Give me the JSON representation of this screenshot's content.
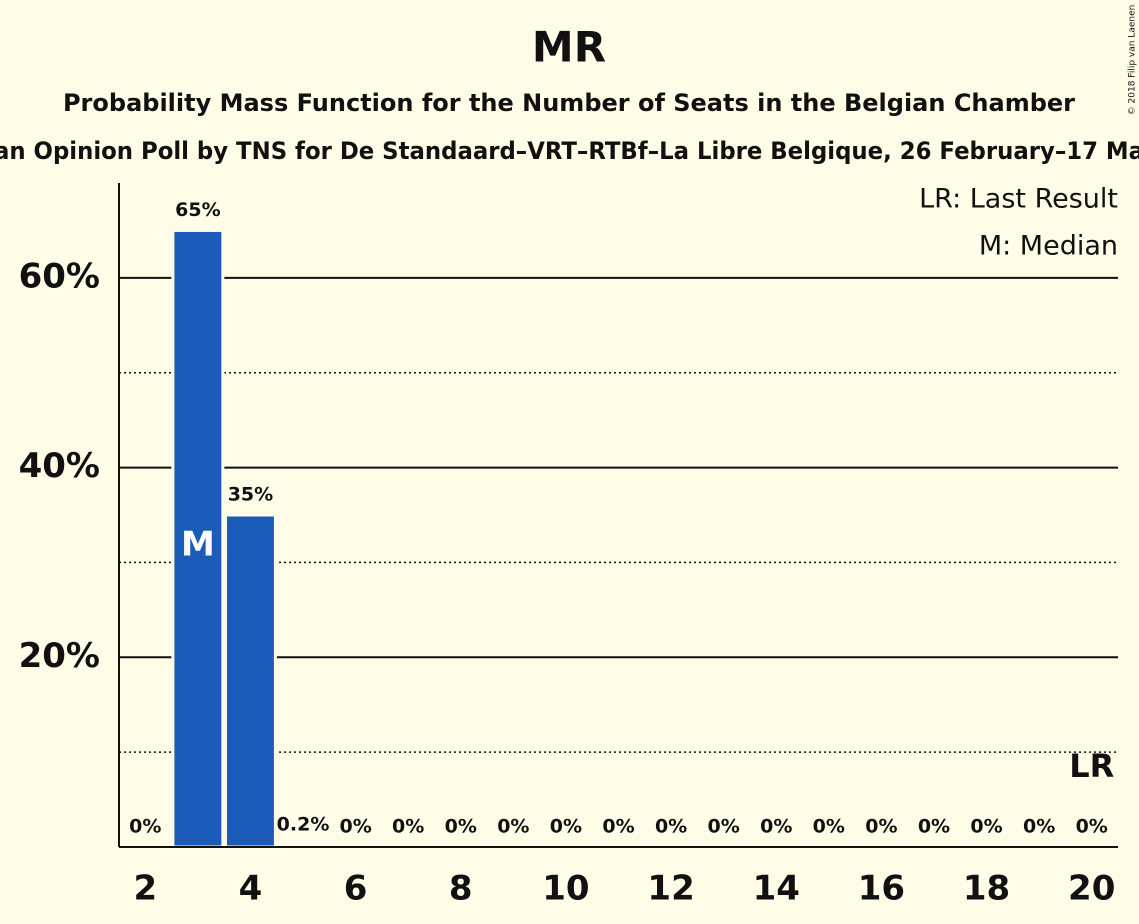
{
  "chart_data": {
    "type": "bar",
    "title": "MR",
    "subtitle": "Probability Mass Function for the Number of Seats in the Belgian Chamber",
    "subtitle2": "an Opinion Poll by TNS for De Standaard–VRT–RTBf–La Libre Belgique, 26 February–17 Ma",
    "copyright": "© 2018 Filip van Laenen",
    "legend": [
      "LR: Last Result",
      "M: Median"
    ],
    "x": [
      2,
      3,
      4,
      5,
      6,
      7,
      8,
      9,
      10,
      11,
      12,
      13,
      14,
      15,
      16,
      17,
      18,
      19,
      20
    ],
    "values": [
      0,
      65,
      35,
      0.2,
      0,
      0,
      0,
      0,
      0,
      0,
      0,
      0,
      0,
      0,
      0,
      0,
      0,
      0,
      0
    ],
    "value_labels": [
      "0%",
      "65%",
      "35%",
      "0.2%",
      "0%",
      "0%",
      "0%",
      "0%",
      "0%",
      "0%",
      "0%",
      "0%",
      "0%",
      "0%",
      "0%",
      "0%",
      "0%",
      "0%",
      "0%"
    ],
    "color": "#1a5cb8",
    "median": 3,
    "median_label": "M",
    "last_result": 20,
    "last_result_label": "LR",
    "xlim": [
      1.5,
      20.5
    ],
    "xticks": [
      2,
      4,
      6,
      8,
      10,
      12,
      14,
      16,
      18,
      20
    ],
    "ylim": [
      0,
      70
    ],
    "yticks": [
      {
        "value": 20,
        "label": "20%"
      },
      {
        "value": 40,
        "label": "40%"
      },
      {
        "value": 60,
        "label": "60%"
      }
    ],
    "yticks_minor": [
      10,
      30,
      50
    ],
    "grid": true
  }
}
